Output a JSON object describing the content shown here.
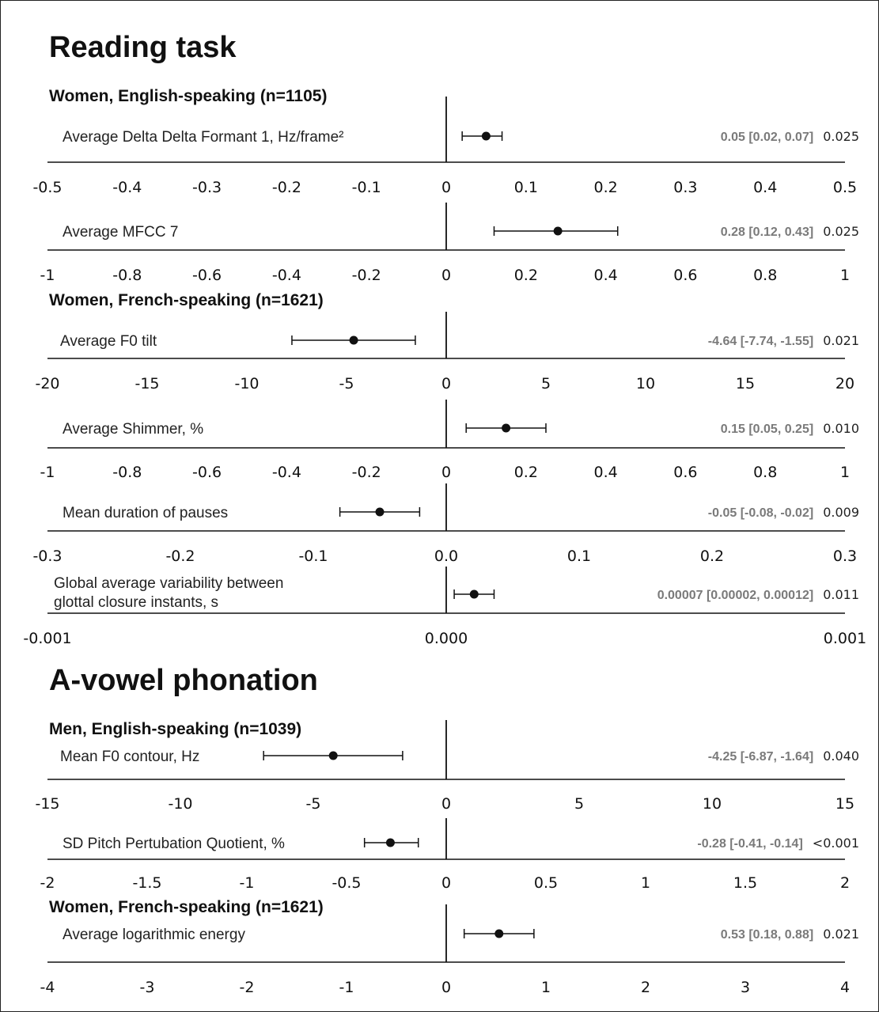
{
  "sections": [
    {
      "title": "Reading task",
      "groups": [
        {
          "label": "Women, English-speaking (n=1105)",
          "rows": [
            {
              "feature": [
                "Average Delta Delta Formant 1, Hz/frame²"
              ],
              "estimate": 0.05,
              "ci": [
                0.02,
                0.07
              ],
              "estimate_text": "0.05 [0.02, 0.07]",
              "p": "0.025",
              "axis": {
                "min": -0.5,
                "max": 0.5,
                "ticks": [
                  "-0.5",
                  "-0.4",
                  "-0.3",
                  "-0.2",
                  "-0.1",
                  "0",
                  "0.1",
                  "0.2",
                  "0.3",
                  "0.4",
                  "0.5"
                ]
              }
            },
            {
              "feature": [
                "Average MFCC 7"
              ],
              "estimate": 0.28,
              "ci": [
                0.12,
                0.43
              ],
              "estimate_text": "0.28 [0.12, 0.43]",
              "p": "0.025",
              "axis": {
                "min": -1,
                "max": 1,
                "ticks": [
                  "-1",
                  "-0.8",
                  "-0.6",
                  "-0.4",
                  "-0.2",
                  "0",
                  "0.2",
                  "0.4",
                  "0.6",
                  "0.8",
                  "1"
                ]
              }
            }
          ]
        },
        {
          "label": "Women, French-speaking (n=1621)",
          "rows": [
            {
              "feature": [
                "Average F0 tilt"
              ],
              "estimate": -4.64,
              "ci": [
                -7.74,
                -1.55
              ],
              "estimate_text": "-4.64 [-7.74, -1.55]",
              "p": "0.021",
              "axis": {
                "min": -20,
                "max": 20,
                "ticks": [
                  "-20",
                  "-15",
                  "-10",
                  "-5",
                  "0",
                  "5",
                  "10",
                  "15",
                  "20"
                ]
              }
            },
            {
              "feature": [
                "Average Shimmer, %"
              ],
              "estimate": 0.15,
              "ci": [
                0.05,
                0.25
              ],
              "estimate_text": "0.15 [0.05, 0.25]",
              "p": "0.010",
              "axis": {
                "min": -1,
                "max": 1,
                "ticks": [
                  "-1",
                  "-0.8",
                  "-0.6",
                  "-0.4",
                  "-0.2",
                  "0",
                  "0.2",
                  "0.4",
                  "0.6",
                  "0.8",
                  "1"
                ]
              }
            },
            {
              "feature": [
                "Mean duration of pauses"
              ],
              "estimate": -0.05,
              "ci": [
                -0.08,
                -0.02
              ],
              "estimate_text": "-0.05 [-0.08, -0.02]",
              "p": "0.009",
              "axis": {
                "min": -0.3,
                "max": 0.3,
                "ticks": [
                  "-0.3",
                  "-0.2",
                  "-0.1",
                  "0.0",
                  "0.1",
                  "0.2",
                  "0.3"
                ]
              }
            },
            {
              "feature": [
                "Global average variability between",
                "glottal closure instants, s"
              ],
              "estimate": 7e-05,
              "ci": [
                2e-05,
                0.00012
              ],
              "estimate_text": "0.00007 [0.00002, 0.00012]",
              "p": "0.011",
              "axis": {
                "min": -0.001,
                "max": 0.001,
                "ticks": [
                  "-0.001",
                  "0.000",
                  "0.001"
                ]
              }
            }
          ]
        }
      ]
    },
    {
      "title": "A-vowel phonation",
      "groups": [
        {
          "label": "Men, English-speaking (n=1039)",
          "rows": [
            {
              "feature": [
                "Mean F0 contour, Hz"
              ],
              "estimate": -4.25,
              "ci": [
                -6.87,
                -1.64
              ],
              "estimate_text": "-4.25 [-6.87, -1.64]",
              "p": "0.040",
              "axis": {
                "min": -15,
                "max": 15,
                "ticks": [
                  "-15",
                  "-10",
                  "-5",
                  "0",
                  "5",
                  "10",
                  "15"
                ]
              }
            },
            {
              "feature": [
                "SD Pitch Pertubation Quotient, %"
              ],
              "estimate": -0.28,
              "ci": [
                -0.41,
                -0.14
              ],
              "estimate_text": "-0.28 [-0.41, -0.14]",
              "p": "<0.001",
              "axis": {
                "min": -2,
                "max": 2,
                "ticks": [
                  "-2",
                  "-1.5",
                  "-1",
                  "-0.5",
                  "0",
                  "0.5",
                  "1",
                  "1.5",
                  "2"
                ]
              }
            }
          ]
        },
        {
          "label": "Women, French-speaking (n=1621)",
          "rows": [
            {
              "feature": [
                "Average logarithmic energy"
              ],
              "estimate": 0.53,
              "ci": [
                0.18,
                0.88
              ],
              "estimate_text": "0.53 [0.18, 0.88]",
              "p": "0.021",
              "axis": {
                "min": -4,
                "max": 4,
                "ticks": [
                  "-4",
                  "-3",
                  "-2",
                  "-1",
                  "0",
                  "1",
                  "2",
                  "3",
                  "4"
                ]
              }
            }
          ]
        }
      ]
    }
  ],
  "chart_data": {
    "type": "scatter",
    "title": "",
    "panels": [
      {
        "section": "Reading task",
        "group": "Women, English-speaking (n=1105)",
        "feature": "Average Delta Delta Formant 1, Hz/frame²",
        "x": 0.05,
        "ci": [
          0.02,
          0.07
        ],
        "p": "0.025",
        "xlim": [
          -0.5,
          0.5
        ]
      },
      {
        "section": "Reading task",
        "group": "Women, English-speaking (n=1105)",
        "feature": "Average MFCC 7",
        "x": 0.28,
        "ci": [
          0.12,
          0.43
        ],
        "p": "0.025",
        "xlim": [
          -1,
          1
        ]
      },
      {
        "section": "Reading task",
        "group": "Women, French-speaking (n=1621)",
        "feature": "Average F0 tilt",
        "x": -4.64,
        "ci": [
          -7.74,
          -1.55
        ],
        "p": "0.021",
        "xlim": [
          -20,
          20
        ]
      },
      {
        "section": "Reading task",
        "group": "Women, French-speaking (n=1621)",
        "feature": "Average Shimmer, %",
        "x": 0.15,
        "ci": [
          0.05,
          0.25
        ],
        "p": "0.010",
        "xlim": [
          -1,
          1
        ]
      },
      {
        "section": "Reading task",
        "group": "Women, French-speaking (n=1621)",
        "feature": "Mean duration of pauses",
        "x": -0.05,
        "ci": [
          -0.08,
          -0.02
        ],
        "p": "0.009",
        "xlim": [
          -0.3,
          0.3
        ]
      },
      {
        "section": "Reading task",
        "group": "Women, French-speaking (n=1621)",
        "feature": "Global average variability between glottal closure instants, s",
        "x": 7e-05,
        "ci": [
          2e-05,
          0.00012
        ],
        "p": "0.011",
        "xlim": [
          -0.001,
          0.001
        ]
      },
      {
        "section": "A-vowel phonation",
        "group": "Men, English-speaking (n=1039)",
        "feature": "Mean F0 contour, Hz",
        "x": -4.25,
        "ci": [
          -6.87,
          -1.64
        ],
        "p": "0.040",
        "xlim": [
          -15,
          15
        ]
      },
      {
        "section": "A-vowel phonation",
        "group": "Men, English-speaking (n=1039)",
        "feature": "SD Pitch Pertubation Quotient, %",
        "x": -0.28,
        "ci": [
          -0.41,
          -0.14
        ],
        "p": "<0.001",
        "xlim": [
          -2,
          2
        ]
      },
      {
        "section": "A-vowel phonation",
        "group": "Women, French-speaking (n=1621)",
        "feature": "Average logarithmic energy",
        "x": 0.53,
        "ci": [
          0.18,
          0.88
        ],
        "p": "0.021",
        "xlim": [
          -4,
          4
        ]
      }
    ]
  },
  "colors": {
    "ink": "#111111",
    "estimate_text": "#7a7a7a"
  }
}
